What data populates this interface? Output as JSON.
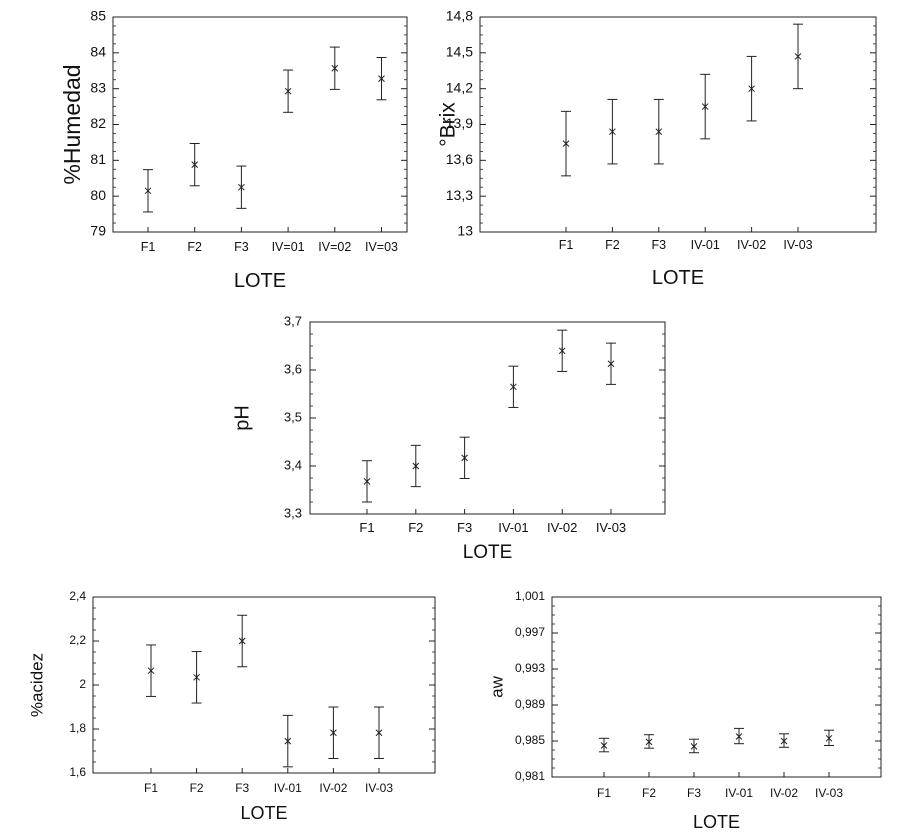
{
  "chart_data": [
    {
      "type": "scatter",
      "ylabel": "%Humedad",
      "xlabel": "LOTE",
      "categories": [
        "F1",
        "F2",
        "F3",
        "IV=01",
        "IV=02",
        "IV=03"
      ],
      "ylim": [
        79,
        85
      ],
      "yticks": [
        "79",
        "80",
        "81",
        "82",
        "83",
        "84",
        "85"
      ],
      "means": [
        80.15,
        80.88,
        80.25,
        82.93,
        83.57,
        83.28
      ],
      "lower": [
        79.56,
        80.29,
        79.66,
        82.34,
        82.98,
        82.69
      ],
      "upper": [
        80.74,
        81.47,
        80.84,
        83.52,
        84.16,
        83.87
      ]
    },
    {
      "type": "scatter",
      "ylabel": "°Brix",
      "xlabel": "LOTE",
      "categories": [
        "F1",
        "F2",
        "F3",
        "IV-01",
        "IV-02",
        "IV-03"
      ],
      "ylim": [
        13,
        14.8
      ],
      "yticks": [
        "13",
        "13,3",
        "13,6",
        "13,9",
        "14,2",
        "14,5",
        "14,8"
      ],
      "means": [
        13.74,
        13.84,
        13.84,
        14.05,
        14.2,
        14.47
      ],
      "lower": [
        13.47,
        13.57,
        13.57,
        13.78,
        13.93,
        14.2
      ],
      "upper": [
        14.01,
        14.11,
        14.11,
        14.32,
        14.47,
        14.74
      ]
    },
    {
      "type": "scatter",
      "ylabel": "pH",
      "xlabel": "LOTE",
      "categories": [
        "F1",
        "F2",
        "F3",
        "IV-01",
        "IV-02",
        "IV-03"
      ],
      "ylim": [
        3.3,
        3.7
      ],
      "yticks": [
        "3,3",
        "3,4",
        "3,5",
        "3,6",
        "3,7"
      ],
      "means": [
        3.368,
        3.4,
        3.417,
        3.565,
        3.64,
        3.613
      ],
      "lower": [
        3.325,
        3.357,
        3.374,
        3.522,
        3.597,
        3.57
      ],
      "upper": [
        3.411,
        3.443,
        3.46,
        3.608,
        3.683,
        3.656
      ]
    },
    {
      "type": "scatter",
      "ylabel": "%acidez",
      "xlabel": "LOTE",
      "categories": [
        "F1",
        "F2",
        "F3",
        "IV-01",
        "IV-02",
        "IV-03"
      ],
      "ylim": [
        1.6,
        2.4
      ],
      "yticks": [
        "1,6",
        "1,8",
        "2",
        "2,2",
        "2,4"
      ],
      "means": [
        2.065,
        2.035,
        2.2,
        1.745,
        1.783,
        1.783
      ],
      "lower": [
        1.948,
        1.918,
        2.083,
        1.628,
        1.666,
        1.666
      ],
      "upper": [
        2.182,
        2.152,
        2.317,
        1.862,
        1.9,
        1.9
      ]
    },
    {
      "type": "scatter",
      "ylabel": "aw",
      "xlabel": "LOTE",
      "categories": [
        "F1",
        "F2",
        "F3",
        "IV-01",
        "IV-02",
        "IV-03"
      ],
      "ylim": [
        0.981,
        1.001
      ],
      "yticks": [
        "0,981",
        "0,985",
        "0,989",
        "0,993",
        "0,997",
        "1,001"
      ],
      "means": [
        0.9845,
        0.9849,
        0.9844,
        0.9855,
        0.985,
        0.9853
      ],
      "lower": [
        0.9838,
        0.9842,
        0.9837,
        0.9847,
        0.9843,
        0.9845
      ],
      "upper": [
        0.9853,
        0.9857,
        0.9852,
        0.9864,
        0.9858,
        0.9862
      ]
    }
  ]
}
